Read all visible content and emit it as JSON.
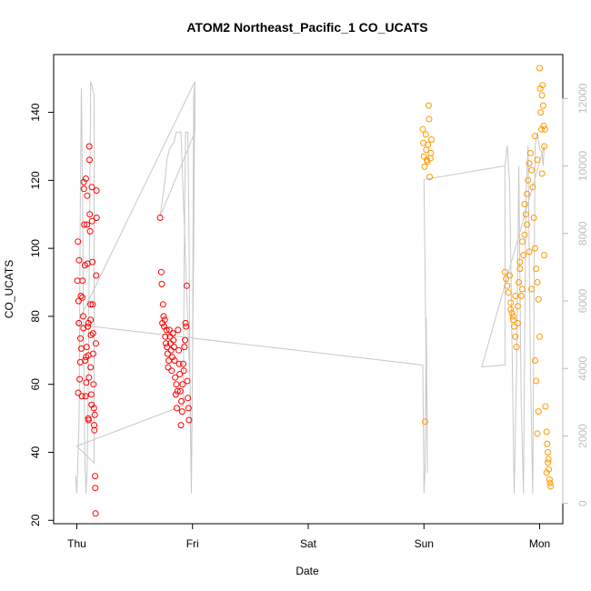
{
  "chart_data": {
    "type": "scatter",
    "title": "ATOM2 Northeast_Pacific_1 CO_UCATS",
    "xlabel": "Date",
    "ylabel": "CO_UCATS",
    "x_ticks": [
      "Thu",
      "Fri",
      "Sat",
      "Sun",
      "Mon"
    ],
    "y_ticks": [
      20,
      40,
      60,
      80,
      100,
      120,
      140
    ],
    "y2_ticks": [
      0,
      2000,
      4000,
      6000,
      8000,
      10000,
      12000
    ],
    "xlim_days": [
      -0.2,
      4.2
    ],
    "ylim": [
      19,
      157
    ],
    "y2lim": [
      -600,
      13300
    ],
    "grid": false,
    "colors": {
      "series_red": "#ff0000",
      "series_orange": "#ff9900",
      "altitude_line": "#c8c8c8"
    },
    "series": [
      {
        "color": "red",
        "points": [
          [
            0.005,
            90.5
          ],
          [
            0.01,
            102
          ],
          [
            0.012,
            57.5
          ],
          [
            0.015,
            84.5
          ],
          [
            0.018,
            78
          ],
          [
            0.02,
            96.5
          ],
          [
            0.025,
            61.5
          ],
          [
            0.03,
            66.5
          ],
          [
            0.032,
            73.5
          ],
          [
            0.035,
            86
          ],
          [
            0.04,
            70.5
          ],
          [
            0.045,
            56.5
          ],
          [
            0.048,
            85.5
          ],
          [
            0.05,
            90.5
          ],
          [
            0.055,
            80
          ],
          [
            0.058,
            76.5
          ],
          [
            0.06,
            119.5
          ],
          [
            0.062,
            117.5
          ],
          [
            0.065,
            107
          ],
          [
            0.07,
            95
          ],
          [
            0.072,
            67
          ],
          [
            0.075,
            56.5
          ],
          [
            0.078,
            120.5
          ],
          [
            0.08,
            68
          ],
          [
            0.082,
            60.5
          ],
          [
            0.085,
            71
          ],
          [
            0.088,
            107
          ],
          [
            0.09,
            115.5
          ],
          [
            0.092,
            95.5
          ],
          [
            0.095,
            77
          ],
          [
            0.1,
            78
          ],
          [
            0.1,
            68.5
          ],
          [
            0.1,
            50
          ],
          [
            0.102,
            49.5
          ],
          [
            0.105,
            62
          ],
          [
            0.108,
            130
          ],
          [
            0.11,
            126
          ],
          [
            0.112,
            110
          ],
          [
            0.115,
            105
          ],
          [
            0.118,
            83.5
          ],
          [
            0.12,
            79
          ],
          [
            0.12,
            65
          ],
          [
            0.122,
            74.5
          ],
          [
            0.125,
            57
          ],
          [
            0.128,
            54
          ],
          [
            0.13,
            118
          ],
          [
            0.132,
            108
          ],
          [
            0.135,
            96
          ],
          [
            0.138,
            83.5
          ],
          [
            0.14,
            75
          ],
          [
            0.142,
            69
          ],
          [
            0.145,
            60
          ],
          [
            0.148,
            53
          ],
          [
            0.15,
            48
          ],
          [
            0.152,
            46.5
          ],
          [
            0.155,
            51
          ],
          [
            0.158,
            33
          ],
          [
            0.16,
            29.5
          ],
          [
            0.162,
            22
          ],
          [
            0.165,
            72
          ],
          [
            0.168,
            92
          ],
          [
            0.17,
            117
          ],
          [
            0.172,
            109
          ],
          [
            0.72,
            109
          ],
          [
            0.73,
            93
          ],
          [
            0.735,
            89.5
          ],
          [
            0.74,
            78
          ],
          [
            0.745,
            83.5
          ],
          [
            0.75,
            80
          ],
          [
            0.755,
            77
          ],
          [
            0.76,
            79
          ],
          [
            0.765,
            74
          ],
          [
            0.77,
            72
          ],
          [
            0.775,
            76
          ],
          [
            0.78,
            71
          ],
          [
            0.785,
            69
          ],
          [
            0.79,
            65
          ],
          [
            0.795,
            67
          ],
          [
            0.8,
            76
          ],
          [
            0.805,
            74
          ],
          [
            0.81,
            72
          ],
          [
            0.815,
            70
          ],
          [
            0.82,
            64
          ],
          [
            0.825,
            68
          ],
          [
            0.83,
            75
          ],
          [
            0.835,
            73
          ],
          [
            0.84,
            71
          ],
          [
            0.845,
            67
          ],
          [
            0.85,
            62
          ],
          [
            0.855,
            57
          ],
          [
            0.86,
            60
          ],
          [
            0.865,
            53
          ],
          [
            0.87,
            58
          ],
          [
            0.875,
            76
          ],
          [
            0.88,
            70
          ],
          [
            0.885,
            66
          ],
          [
            0.89,
            63
          ],
          [
            0.895,
            58
          ],
          [
            0.9,
            48
          ],
          [
            0.905,
            55
          ],
          [
            0.91,
            52
          ],
          [
            0.915,
            60
          ],
          [
            0.92,
            66
          ],
          [
            0.925,
            64
          ],
          [
            0.93,
            71
          ],
          [
            0.935,
            73
          ],
          [
            0.94,
            78
          ],
          [
            0.945,
            77
          ],
          [
            0.95,
            89
          ],
          [
            0.955,
            61
          ],
          [
            0.96,
            56
          ],
          [
            0.965,
            53
          ],
          [
            0.97,
            49.5
          ]
        ]
      },
      {
        "color": "orange",
        "points": [
          [
            2.99,
            135
          ],
          [
            2.995,
            131
          ],
          [
            3.0,
            127
          ],
          [
            3.005,
            124
          ],
          [
            3.01,
            49
          ],
          [
            3.015,
            133.5
          ],
          [
            3.02,
            129
          ],
          [
            3.025,
            126
          ],
          [
            3.03,
            125.5
          ],
          [
            3.035,
            130.5
          ],
          [
            3.04,
            142
          ],
          [
            3.045,
            138
          ],
          [
            3.05,
            121
          ],
          [
            3.055,
            126.5
          ],
          [
            3.06,
            128
          ],
          [
            3.065,
            132
          ],
          [
            3.7,
            93
          ],
          [
            3.71,
            91
          ],
          [
            3.72,
            89
          ],
          [
            3.73,
            87
          ],
          [
            3.74,
            92
          ],
          [
            3.75,
            84
          ],
          [
            3.76,
            81
          ],
          [
            3.77,
            79
          ],
          [
            3.78,
            77
          ],
          [
            3.79,
            74
          ],
          [
            3.8,
            71
          ],
          [
            3.81,
            83
          ],
          [
            3.82,
            90
          ],
          [
            3.83,
            94
          ],
          [
            3.84,
            86
          ],
          [
            3.85,
            88
          ],
          [
            3.86,
            98
          ],
          [
            3.87,
            104
          ],
          [
            3.88,
            110
          ],
          [
            3.89,
            116
          ],
          [
            3.9,
            120
          ],
          [
            3.91,
            125
          ],
          [
            3.92,
            128
          ],
          [
            3.93,
            123
          ],
          [
            3.94,
            118
          ],
          [
            3.95,
            109
          ],
          [
            3.96,
            100
          ],
          [
            3.97,
            94
          ],
          [
            3.98,
            90
          ],
          [
            3.99,
            85
          ],
          [
            3.75,
            82
          ],
          [
            3.77,
            80
          ],
          [
            3.79,
            86
          ],
          [
            3.81,
            78
          ],
          [
            3.83,
            96
          ],
          [
            3.85,
            102
          ],
          [
            3.87,
            113
          ],
          [
            3.89,
            107
          ],
          [
            3.91,
            99
          ],
          [
            3.93,
            88
          ],
          [
            4.0,
            153
          ],
          [
            4.005,
            147
          ],
          [
            4.01,
            140
          ],
          [
            4.015,
            135
          ],
          [
            4.02,
            145
          ],
          [
            4.025,
            148
          ],
          [
            4.03,
            142
          ],
          [
            4.035,
            136
          ],
          [
            4.04,
            130
          ],
          [
            4.045,
            135
          ],
          [
            3.96,
            133
          ],
          [
            3.98,
            126
          ],
          [
            4.02,
            122
          ],
          [
            4.04,
            98
          ],
          [
            4.05,
            53.5
          ],
          [
            4.06,
            46
          ],
          [
            4.065,
            42.5
          ],
          [
            4.07,
            40
          ],
          [
            4.075,
            38
          ],
          [
            4.08,
            35
          ],
          [
            4.085,
            32
          ],
          [
            4.09,
            31
          ],
          [
            4.095,
            30
          ],
          [
            4.07,
            37
          ],
          [
            4.06,
            34
          ],
          [
            3.99,
            52
          ],
          [
            3.98,
            45.5
          ],
          [
            3.97,
            61
          ],
          [
            3.96,
            67
          ],
          [
            4.0,
            74
          ]
        ]
      }
    ],
    "altitude_series": {
      "axis": "right",
      "points": [
        [
          -0.01,
          800
        ],
        [
          0.0,
          300
        ],
        [
          0.01,
          1300
        ],
        [
          0.02,
          2500
        ],
        [
          0.03,
          8800
        ],
        [
          0.04,
          12300
        ],
        [
          0.05,
          9000
        ],
        [
          0.06,
          4500
        ],
        [
          0.07,
          1200
        ],
        [
          0.08,
          300
        ],
        [
          0.09,
          1000
        ],
        [
          0.1,
          4000
        ],
        [
          0.11,
          8000
        ],
        [
          0.12,
          12500
        ],
        [
          0.13,
          12400
        ],
        [
          0.14,
          12200
        ],
        [
          0.15,
          12100
        ],
        [
          0.15,
          2500
        ],
        [
          0.15,
          1200
        ],
        [
          0.0,
          1700
        ],
        [
          0.92,
          2900
        ],
        [
          0.93,
          8000
        ],
        [
          0.94,
          11000
        ],
        [
          0.95,
          11000
        ],
        [
          0.96,
          11000
        ],
        [
          0.97,
          8000
        ],
        [
          0.98,
          2500
        ],
        [
          0.99,
          300
        ],
        [
          1.0,
          4000
        ],
        [
          1.01,
          12000
        ],
        [
          1.02,
          12500
        ],
        [
          1.02,
          11000
        ],
        [
          0.72,
          8500
        ],
        [
          0.74,
          9000
        ],
        [
          0.76,
          9500
        ],
        [
          0.78,
          10200
        ],
        [
          0.8,
          10500
        ],
        [
          0.82,
          10600
        ],
        [
          0.84,
          10700
        ],
        [
          0.86,
          11000
        ],
        [
          0.88,
          11000
        ],
        [
          0.9,
          11000
        ],
        [
          0.98,
          3400
        ],
        [
          0.99,
          300
        ],
        [
          1.0,
          4200
        ],
        [
          1.01,
          7500
        ],
        [
          1.02,
          12500
        ],
        [
          0.0,
          5300
        ],
        [
          2.99,
          4100
        ],
        [
          3.0,
          300
        ],
        [
          3.01,
          1000
        ],
        [
          3.02,
          5500
        ],
        [
          3.025,
          3200
        ],
        [
          3.03,
          900
        ],
        [
          3.0,
          9600
        ],
        [
          3.0,
          9600
        ],
        [
          3.7,
          10000
        ],
        [
          3.72,
          10600
        ],
        [
          3.74,
          9500
        ],
        [
          3.76,
          5000
        ],
        [
          3.78,
          300
        ],
        [
          3.8,
          4000
        ],
        [
          3.82,
          10000
        ],
        [
          3.84,
          3000
        ],
        [
          3.86,
          300
        ],
        [
          3.88,
          9000
        ],
        [
          3.9,
          10600
        ],
        [
          3.92,
          4000
        ],
        [
          3.94,
          300
        ],
        [
          3.96,
          10600
        ],
        [
          3.98,
          11000
        ],
        [
          4.0,
          10500
        ],
        [
          4.02,
          10400
        ],
        [
          4.03,
          10000
        ],
        [
          4.04,
          10600
        ],
        [
          3.5,
          4050
        ],
        [
          3.7,
          4100
        ],
        [
          3.7,
          10000
        ]
      ]
    }
  }
}
